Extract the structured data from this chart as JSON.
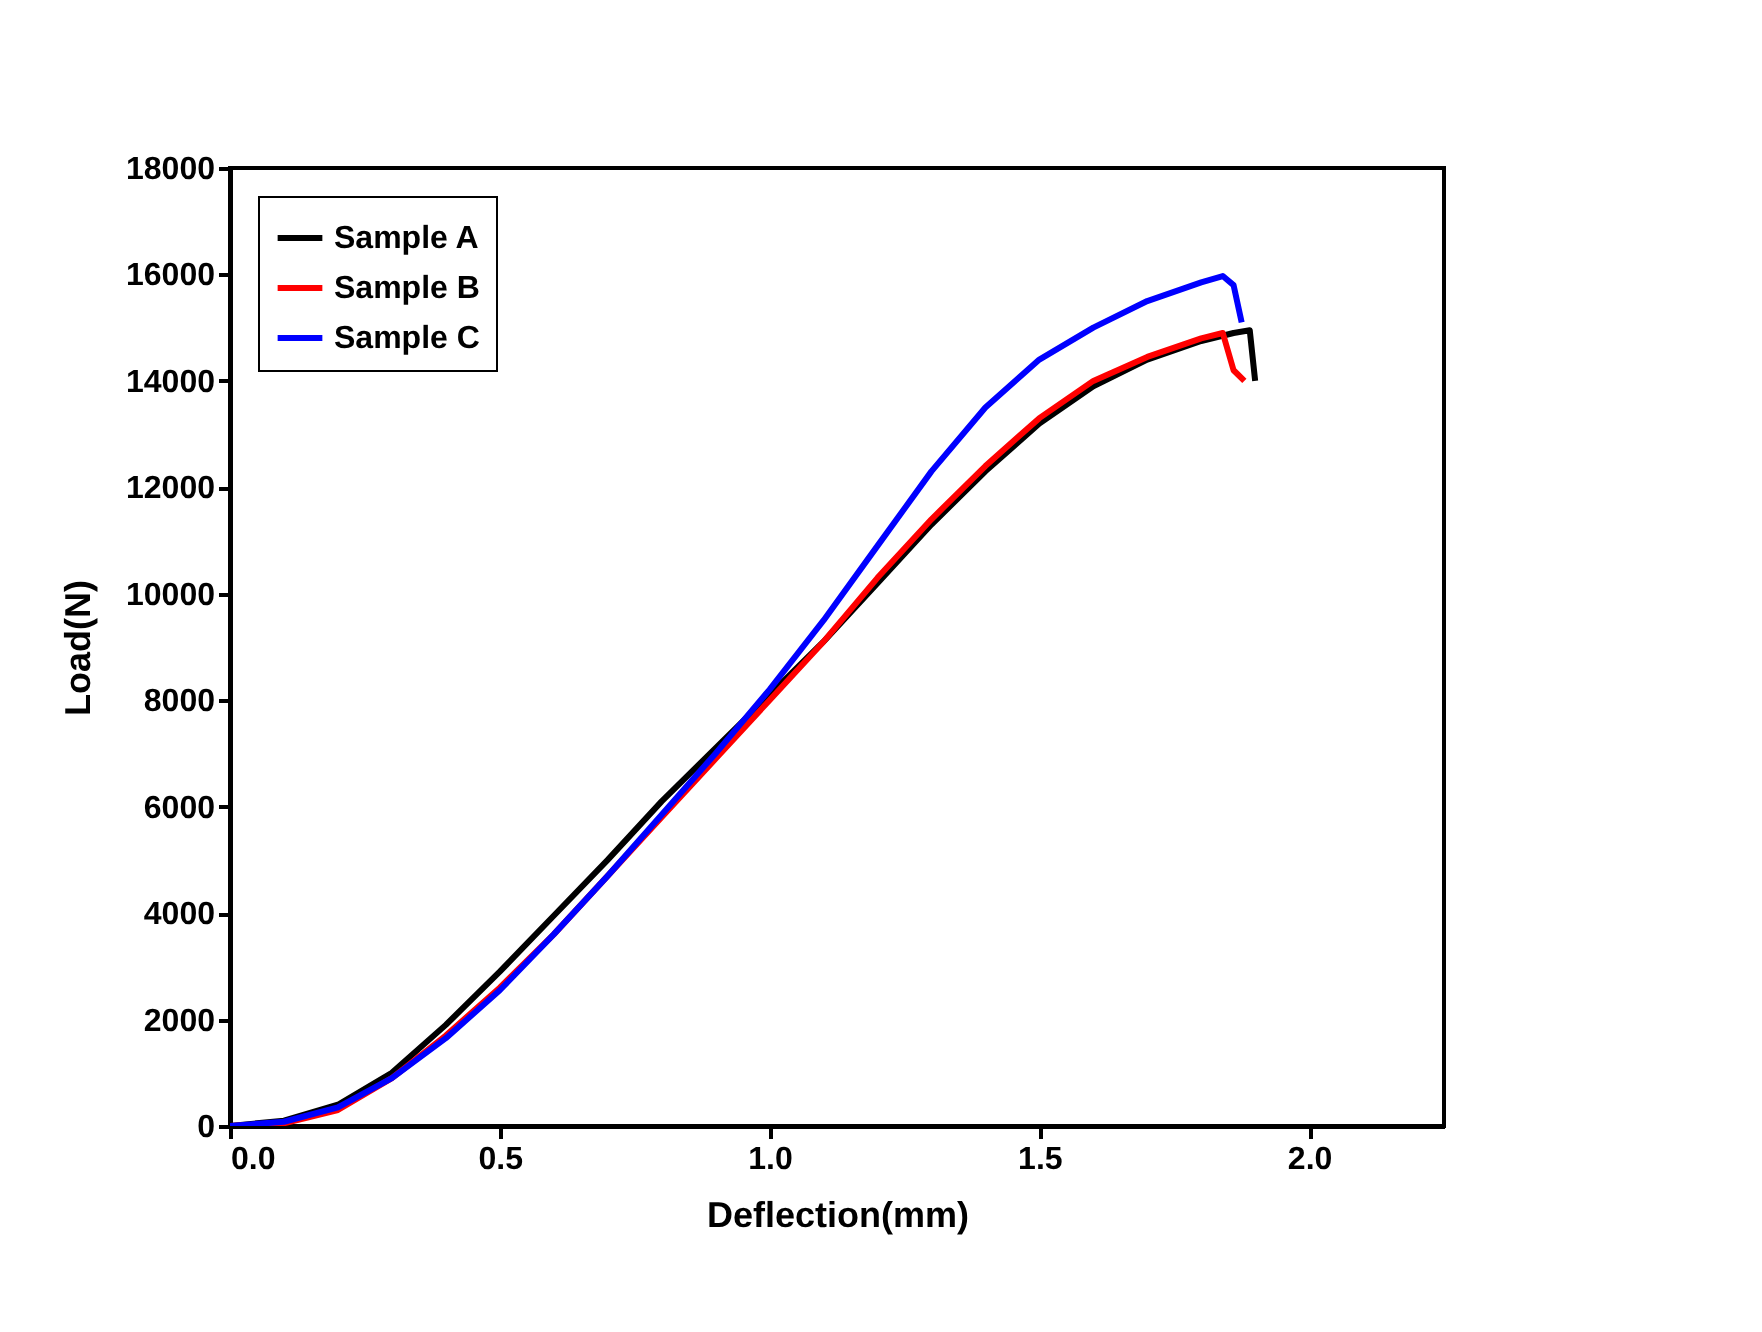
{
  "chart_data": {
    "type": "line",
    "xlabel": "Deflection(mm)",
    "ylabel": "Load(N)",
    "xlim": [
      0,
      2.25
    ],
    "xticks": [
      {
        "value": 0,
        "label": "0.0"
      },
      {
        "value": 0.5,
        "label": "0.5"
      },
      {
        "value": 1,
        "label": "1.0"
      },
      {
        "value": 1.5,
        "label": "1.5"
      },
      {
        "value": 2,
        "label": "2.0"
      }
    ],
    "ylim": [
      0,
      18000
    ],
    "yticks": [
      0,
      2000,
      4000,
      6000,
      8000,
      10000,
      12000,
      14000,
      16000,
      18000
    ],
    "grid": false,
    "legend": "top left",
    "marker": "none",
    "line_style": "solid",
    "series": [
      {
        "name": "Sample A",
        "color": "#000000",
        "x": [
          0,
          0.1,
          0.2,
          0.3,
          0.4,
          0.5,
          0.6,
          0.7,
          0.8,
          0.9,
          1.0,
          1.1,
          1.2,
          1.3,
          1.4,
          1.5,
          1.6,
          1.7,
          1.8,
          1.86,
          1.89,
          1.9
        ],
        "values": [
          0,
          100,
          400,
          1000,
          1900,
          2900,
          3950,
          5000,
          6100,
          7100,
          8100,
          9100,
          10200,
          11300,
          12300,
          13200,
          13900,
          14400,
          14750,
          14900,
          14950,
          14000
        ]
      },
      {
        "name": "Sample B",
        "color": "#ff0000",
        "x": [
          0,
          0.1,
          0.2,
          0.3,
          0.4,
          0.5,
          0.6,
          0.7,
          0.8,
          0.9,
          1.0,
          1.1,
          1.2,
          1.3,
          1.4,
          1.5,
          1.6,
          1.7,
          1.8,
          1.84,
          1.86,
          1.88
        ],
        "values": [
          0,
          50,
          300,
          900,
          1700,
          2600,
          3600,
          4700,
          5800,
          6900,
          8000,
          9100,
          10300,
          11400,
          12400,
          13300,
          14000,
          14450,
          14800,
          14900,
          14200,
          14000
        ]
      },
      {
        "name": "Sample C",
        "color": "#0000ff",
        "x": [
          0,
          0.1,
          0.2,
          0.3,
          0.4,
          0.5,
          0.6,
          0.7,
          0.8,
          0.9,
          1.0,
          1.1,
          1.2,
          1.3,
          1.4,
          1.5,
          1.6,
          1.7,
          1.8,
          1.84,
          1.86,
          1.875
        ],
        "values": [
          0,
          80,
          350,
          900,
          1650,
          2550,
          3600,
          4700,
          5850,
          7000,
          8200,
          9500,
          10900,
          12300,
          13500,
          14400,
          15000,
          15500,
          15850,
          15970,
          15800,
          15100
        ]
      }
    ]
  }
}
